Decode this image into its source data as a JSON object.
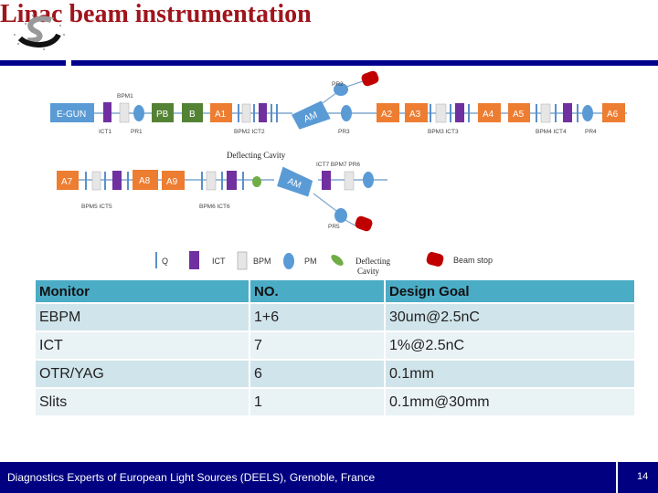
{
  "slide": {
    "title": "Linac beam instrumentation",
    "logo": "institute-logo",
    "colors": {
      "title": "#a0141c",
      "bar": "#00008b",
      "footer": "#000080",
      "table_header": "#4bacc6"
    }
  },
  "diagram": {
    "row1": {
      "boxes": [
        "E-GUN",
        "PB",
        "B",
        "A1",
        "AM",
        "A2",
        "A3",
        "A4",
        "A5",
        "A6"
      ],
      "labels": [
        "BPM1",
        "ICT1",
        "PR1",
        "BPM2 ICT2",
        "PR2",
        "PR3",
        "BPM3 ICT3",
        "BPM4 ICT4",
        "PR4"
      ]
    },
    "row2": {
      "boxes": [
        "A7",
        "A8",
        "A9",
        "AM"
      ],
      "labels": [
        "BPM5 ICT5",
        "BPM6 ICT6",
        "ICT7 BPM7 PR6",
        "PR5",
        "Deflecting Cavity"
      ]
    },
    "legend": [
      "Q",
      "ICT",
      "BPM",
      "PM",
      "Deflecting",
      "Cavity",
      "Beam stop"
    ],
    "colors": {
      "accelerator": "#ed7d31",
      "gun": "#5b9bd5",
      "buncher": "#548235",
      "ict": "#7030a0",
      "bpm": "#e7e6e6",
      "beam_stop": "#c00000",
      "deflecting_cavity": "#70ad47"
    }
  },
  "table": {
    "headers": [
      "Monitor",
      "NO.",
      "Design Goal"
    ],
    "rows": [
      [
        "EBPM",
        "1+6",
        "30um@2.5nC"
      ],
      [
        "ICT",
        "7",
        "1%@2.5nC"
      ],
      [
        "OTR/YAG",
        "6",
        "0.1mm"
      ],
      [
        "Slits",
        "1",
        "0.1mm@30mm"
      ]
    ]
  },
  "footer": {
    "text": "Diagnostics Experts of European Light Sources (DEELS), Grenoble, France",
    "page": "14"
  }
}
